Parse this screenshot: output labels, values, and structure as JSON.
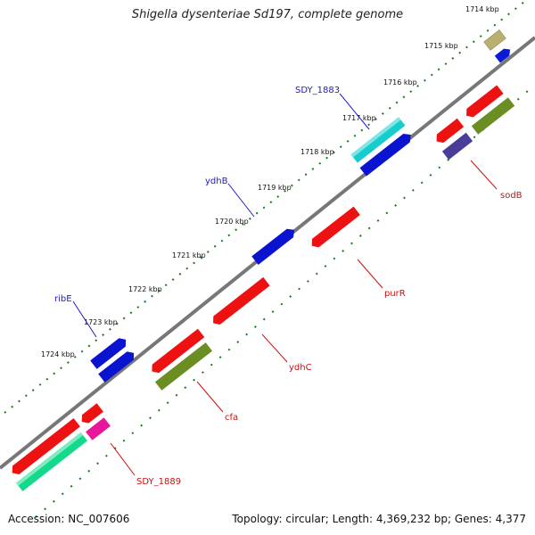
{
  "title": "Shigella dysenteriae Sd197, complete genome",
  "footer": {
    "accession": "Accession: NC_007606",
    "summary": "Topology: circular; Length: 4,369,232 bp; Genes: 4,377"
  },
  "colors": {
    "backbone": "#808080",
    "tick_dots": "#1a7a1a",
    "forward_label": "#1a1acc",
    "reverse_label": "#cc1111"
  },
  "kbp_labels": [
    "1714 kbp",
    "1715 kbp",
    "1716 kbp",
    "1717 kbp",
    "1718 kbp",
    "1719 kbp",
    "1720 kbp",
    "1721 kbp",
    "1722 kbp",
    "1723 kbp",
    "1724 kbp"
  ],
  "gene_labels": {
    "forward": [
      "SDY_1883",
      "ydhB",
      "ribE"
    ],
    "reverse": [
      "sodB",
      "purR",
      "ydhC",
      "cfa",
      "SDY_1889"
    ]
  },
  "gene_colors": [
    "khaki",
    "blue",
    "red",
    "olive",
    "cyan",
    "navy-purple",
    "spring-green",
    "magenta"
  ]
}
